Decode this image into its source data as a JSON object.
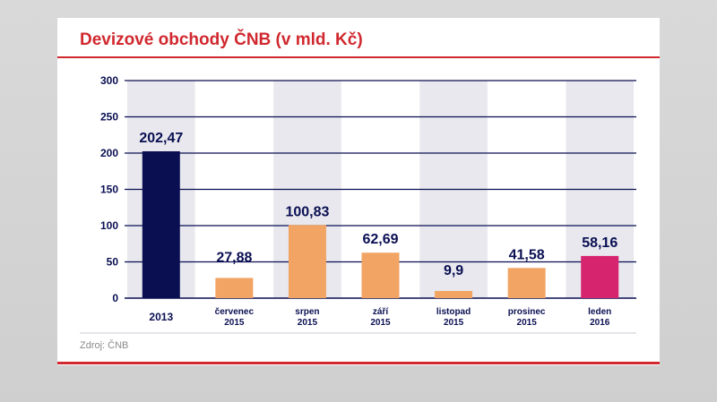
{
  "title": "Devizové obchody ČNB (v mld. Kč)",
  "source": "Zdroj: ČNB",
  "colors": {
    "title": "#d0282e",
    "navy": "#0a0f52",
    "orange": "#f2a464",
    "magenta": "#d6246e",
    "column_bg": "#e8e8ee"
  },
  "chart_data": {
    "type": "bar",
    "title": "Devizové obchody ČNB (v mld. Kč)",
    "xlabel": "",
    "ylabel": "",
    "ylim": [
      0,
      300
    ],
    "yticks": [
      "0",
      "50",
      "100",
      "150",
      "200",
      "250",
      "300"
    ],
    "grid": true,
    "categories": [
      [
        "2013"
      ],
      [
        "červenec",
        "2015"
      ],
      [
        "srpen",
        "2015"
      ],
      [
        "září",
        "2015"
      ],
      [
        "listopad",
        "2015"
      ],
      [
        "prosinec",
        "2015"
      ],
      [
        "leden",
        "2016"
      ]
    ],
    "values": [
      202.47,
      27.88,
      100.83,
      62.69,
      9.9,
      41.58,
      58.16
    ],
    "value_labels": [
      "202,47",
      "27,88",
      "100,83",
      "62,69",
      "9,9",
      "41,58",
      "58,16"
    ],
    "bar_colors": [
      "#0a0f52",
      "#f2a464",
      "#f2a464",
      "#f2a464",
      "#f2a464",
      "#f2a464",
      "#d6246e"
    ]
  }
}
